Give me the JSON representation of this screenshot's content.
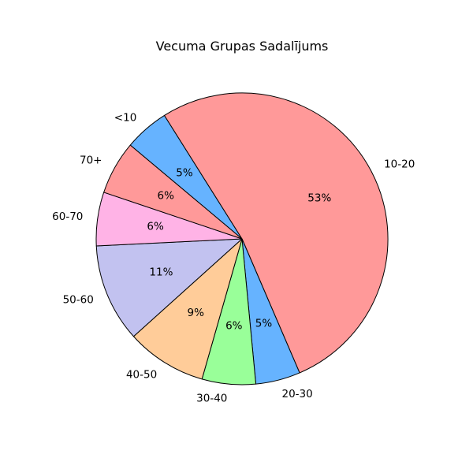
{
  "chart_data": {
    "type": "pie",
    "title": "Vecuma Grupas Sadalījums",
    "start_angle_deg": 140,
    "direction": "clockwise",
    "slices": [
      {
        "label": "<10",
        "value": 5,
        "pct_label": "5%",
        "color": "#66b3ff"
      },
      {
        "label": "10-20",
        "value": 53,
        "pct_label": "53%",
        "color": "#ff9999"
      },
      {
        "label": "20-30",
        "value": 5,
        "pct_label": "5%",
        "color": "#66b3ff"
      },
      {
        "label": "30-40",
        "value": 6,
        "pct_label": "6%",
        "color": "#99ff99"
      },
      {
        "label": "40-50",
        "value": 9,
        "pct_label": "9%",
        "color": "#ffcc99"
      },
      {
        "label": "50-60",
        "value": 11,
        "pct_label": "11%",
        "color": "#c2c2f0"
      },
      {
        "label": "60-70",
        "value": 6,
        "pct_label": "6%",
        "color": "#ffb3e6"
      },
      {
        "label": "70+",
        "value": 6,
        "pct_label": "6%",
        "color": "#ff9999"
      }
    ],
    "edge_color": "#000000"
  }
}
